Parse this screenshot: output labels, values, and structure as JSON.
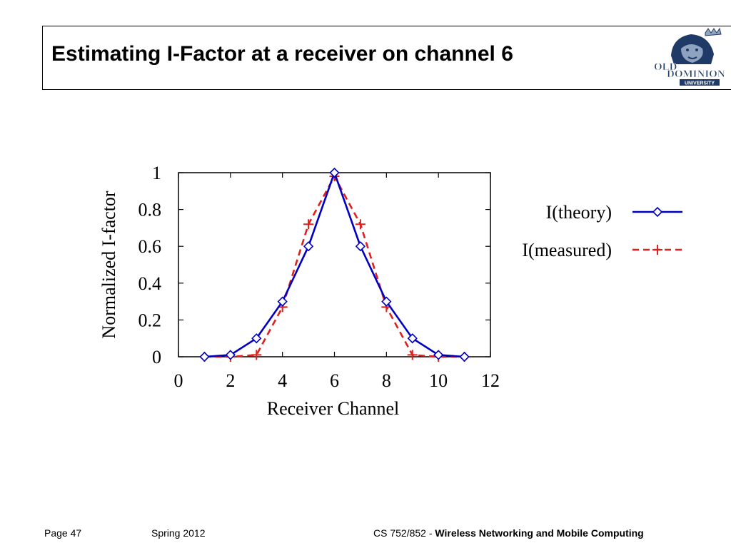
{
  "slide": {
    "title": "Estimating I-Factor at a receiver on channel 6",
    "logo_text": {
      "old": "OLD",
      "dominion": "DOMINION",
      "university": "UNIVERSITY"
    }
  },
  "footer": {
    "page": "Page 47",
    "term": "Spring 2012",
    "course_prefix": "CS 752/852 - ",
    "course_name": "Wireless Networking and Mobile Computing"
  },
  "chart_data": {
    "type": "line",
    "xlabel": "Receiver Channel",
    "ylabel": "Normalized I-factor",
    "xlim": [
      0,
      12
    ],
    "ylim": [
      0,
      1
    ],
    "xticks": [
      0,
      2,
      4,
      6,
      8,
      10,
      12
    ],
    "yticks": [
      0,
      0.2,
      0.4,
      0.6,
      0.8,
      1
    ],
    "ytick_labels": [
      "0",
      "0.2",
      "0.4",
      "0.6",
      "0.8",
      "1"
    ],
    "grid": false,
    "legend_position": "right",
    "x": [
      1,
      2,
      3,
      4,
      5,
      6,
      7,
      8,
      9,
      10,
      11
    ],
    "series": [
      {
        "name": "I(theory)",
        "color": "#0000c0",
        "marker": "diamond",
        "dash": "solid",
        "values": [
          0.0,
          0.01,
          0.1,
          0.3,
          0.6,
          1.0,
          0.6,
          0.3,
          0.1,
          0.01,
          0.0
        ]
      },
      {
        "name": "I(measured)",
        "color": "#e0201c",
        "marker": "plus",
        "dash": "dashed",
        "values": [
          0.0,
          0.0,
          0.01,
          0.27,
          0.72,
          0.98,
          0.72,
          0.27,
          0.01,
          0.0,
          0.0
        ]
      }
    ]
  }
}
